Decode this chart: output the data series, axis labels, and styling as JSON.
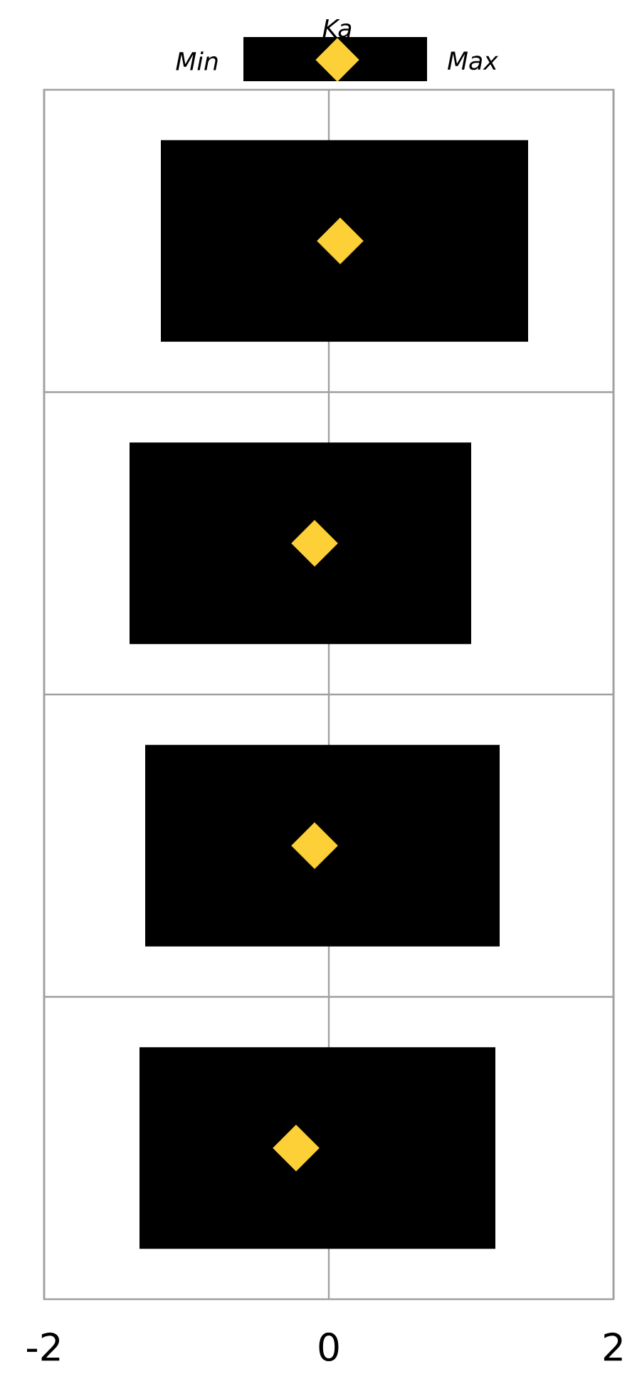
{
  "chart_data": {
    "type": "bar",
    "orientation": "horizontal",
    "categories": [
      null,
      null,
      null,
      null
    ],
    "series": [
      {
        "color": "#000000",
        "base": [
          -1.18,
          -1.4,
          -1.29,
          -1.33
        ],
        "values": [
          2.58,
          2.4,
          2.49,
          2.5
        ]
      },
      {
        "type": "scatter",
        "name": "Ka",
        "color": "#fcd036",
        "marker": "diamond",
        "values": [
          0.08,
          -0.1,
          -0.1,
          -0.23
        ]
      }
    ],
    "xlim": [
      -2,
      2
    ],
    "xticks": [
      -2,
      0,
      2
    ],
    "grid": "x",
    "legend": "top",
    "annotations": [
      "Min",
      "Max"
    ]
  }
}
